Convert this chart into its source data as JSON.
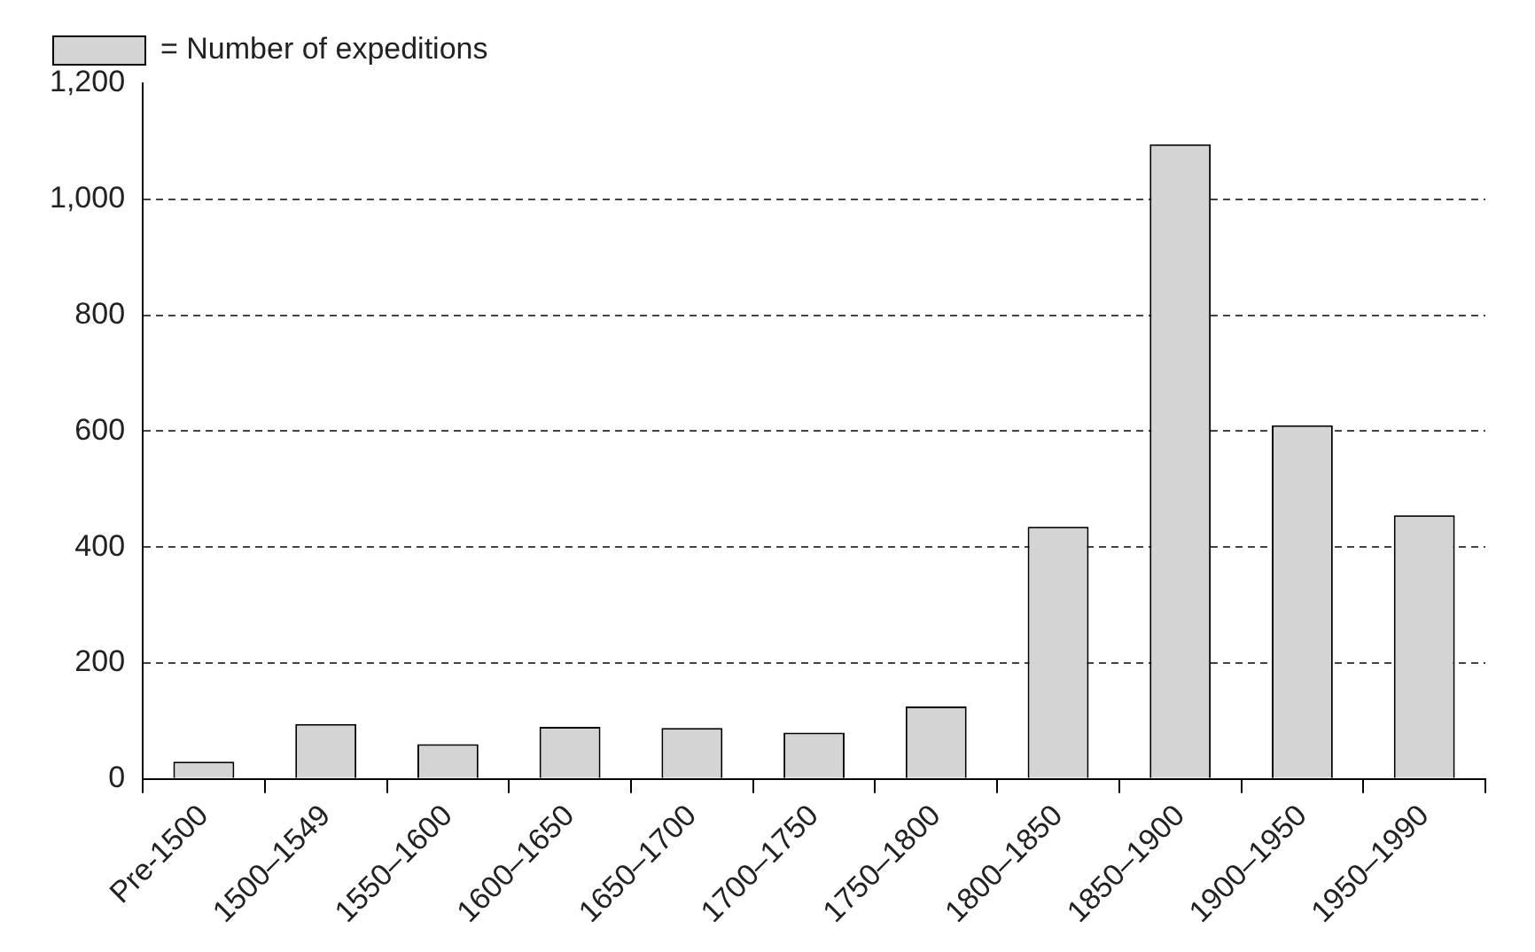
{
  "chart_data": {
    "type": "bar",
    "categories": [
      "Pre-1500",
      "1500–1549",
      "1550–1600",
      "1600–1650",
      "1650–1700",
      "1700–1750",
      "1750–1800",
      "1800–1850",
      "1850–1900",
      "1900–1950",
      "1950–1990"
    ],
    "series": [
      {
        "name": "= Number of expeditions",
        "color": "#d4d4d4",
        "values": [
          30,
          95,
          60,
          90,
          88,
          80,
          125,
          435,
          1095,
          610,
          455
        ]
      }
    ],
    "ylim": [
      0,
      1200
    ],
    "yticks": [
      0,
      200,
      400,
      600,
      800,
      {
        "value": 1000,
        "label": "1,000"
      },
      {
        "value": 1200,
        "label": "1,200"
      }
    ],
    "grid": "y",
    "legend": "top left"
  }
}
